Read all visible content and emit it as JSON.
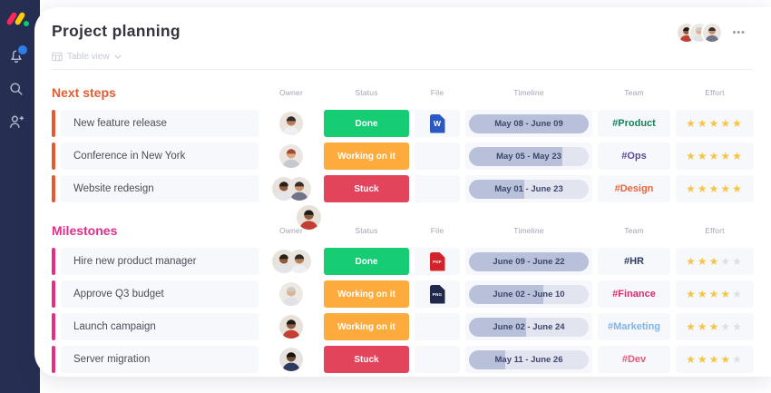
{
  "header": {
    "title": "Project planning",
    "view_label": "Table view",
    "menu_label": "•••",
    "team_avatars": [
      "a6",
      "a5",
      "a4"
    ]
  },
  "columns": {
    "owner": "Owner",
    "status": "Status",
    "file": "File",
    "timeline": "Timeline",
    "team": "Team",
    "effort": "Effort"
  },
  "effort": {
    "symbol": "★",
    "max": 5,
    "filled_color": "#f6c544",
    "empty_color": "#dcdfe8"
  },
  "people": {
    "a1": {
      "bg": "#e9e4de",
      "skin": "#b97c57",
      "hair": "#2f2b28",
      "shirt": "#eef0f3"
    },
    "a2": {
      "bg": "#ece7e3",
      "skin": "#dda687",
      "hair": "#a7492c",
      "shirt": "#c7c9d1"
    },
    "a3": {
      "bg": "#e8e2dc",
      "skin": "#8d5a3b",
      "hair": "#262019",
      "shirt": "#e3e5ea"
    },
    "a4": {
      "bg": "#eae5e1",
      "skin": "#c78f68",
      "hair": "#3a2d28",
      "shirt": "#707488"
    },
    "a5": {
      "bg": "#edeae6",
      "skin": "#d9b598",
      "hair": "#cfc9c2",
      "shirt": "#e0e2e7"
    },
    "a6": {
      "bg": "#e7e1da",
      "skin": "#8d5a3b",
      "hair": "#1e1a18",
      "shirt": "#c43f33"
    },
    "a7": {
      "bg": "#e6e3df",
      "skin": "#6f4a31",
      "hair": "#141210",
      "shirt": "#2e3a5e"
    }
  },
  "groups": [
    {
      "name": "Next steps",
      "color": "#e25c33",
      "rows": [
        {
          "task": "New feature release",
          "owners": [
            "a1"
          ],
          "status": {
            "label": "Done",
            "color": "#17cd74"
          },
          "file": {
            "label": "W",
            "color": "#2b59c3"
          },
          "timeline": {
            "label": "May 08 - June 09",
            "progress": 100
          },
          "team": {
            "label": "#Product",
            "color": "#16805a"
          },
          "effort": 5
        },
        {
          "task": "Conference in New York",
          "owners": [
            "a2"
          ],
          "status": {
            "label": "Working on it",
            "color": "#fdab3d"
          },
          "file": null,
          "timeline": {
            "label": "May 05 - May 23",
            "progress": 78
          },
          "team": {
            "label": "#Ops",
            "color": "#5a4b9b"
          },
          "effort": 5
        },
        {
          "task": "Website redesign",
          "owners": [
            "a3",
            "a4"
          ],
          "status": {
            "label": "Stuck",
            "color": "#e2445c"
          },
          "file": null,
          "timeline": {
            "label": "May 01 - June 23",
            "progress": 46
          },
          "team": {
            "label": "#Design",
            "color": "#e8653c"
          },
          "effort": 5
        }
      ]
    },
    {
      "name": "Milestones",
      "color": "#e2308a",
      "floating_avatar": [
        "a6"
      ],
      "rows": [
        {
          "task": "Hire new product manager",
          "owners": [
            "a3",
            "a1"
          ],
          "status": {
            "label": "Done",
            "color": "#17cd74"
          },
          "file": {
            "label": "PDF",
            "color": "#d3222a"
          },
          "timeline": {
            "label": "June 09 - June 22",
            "progress": 100
          },
          "team": {
            "label": "#HR",
            "color": "#2d3a66"
          },
          "effort": 3
        },
        {
          "task": "Approve Q3 budget",
          "owners": [
            "a5"
          ],
          "status": {
            "label": "Working on it",
            "color": "#fdab3d"
          },
          "file": {
            "label": "PNG",
            "color": "#20294c"
          },
          "timeline": {
            "label": "June 02 - June 10",
            "progress": 62
          },
          "team": {
            "label": "#Finance",
            "color": "#e02a70"
          },
          "effort": 4
        },
        {
          "task": "Launch campaign",
          "owners": [
            "a6"
          ],
          "status": {
            "label": "Working on it",
            "color": "#fdab3d"
          },
          "file": null,
          "timeline": {
            "label": "June 02 - June 24",
            "progress": 48
          },
          "team": {
            "label": "#Marketing",
            "color": "#7fb3e8"
          },
          "effort": 3
        },
        {
          "task": "Server migration",
          "owners": [
            "a7"
          ],
          "status": {
            "label": "Stuck",
            "color": "#e2445c"
          },
          "file": null,
          "timeline": {
            "label": "May 11 - June 26",
            "progress": 30
          },
          "team": {
            "label": "#Dev",
            "color": "#e25a74"
          },
          "effort": 4
        }
      ]
    }
  ]
}
